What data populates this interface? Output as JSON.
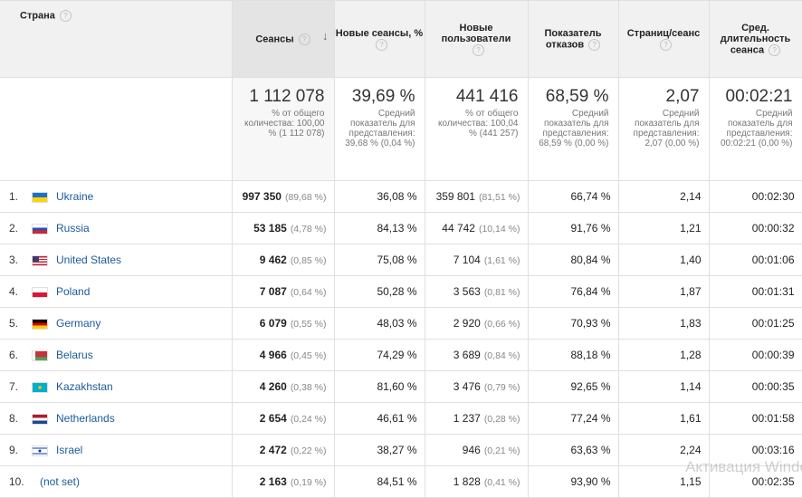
{
  "headers": {
    "country": "Страна",
    "sessions": "Сеансы",
    "new_sessions": "Новые сеансы, %",
    "new_users": "Новые пользователи",
    "bounce": "Показатель отказов",
    "pages": "Страниц/сеанс",
    "duration": "Сред. длительность сеанса"
  },
  "totals": {
    "sessions": {
      "value": "1 112 078",
      "sub": "% от общего количества: 100,00 % (1 112 078)"
    },
    "new_sessions": {
      "value": "39,69 %",
      "sub": "Средний показатель для представления: 39,68 % (0,04 %)"
    },
    "new_users": {
      "value": "441 416",
      "sub": "% от общего количества: 100,04 % (441 257)"
    },
    "bounce": {
      "value": "68,59 %",
      "sub": "Средний показатель для представления: 68,59 % (0,00 %)"
    },
    "pages": {
      "value": "2,07",
      "sub": "Средний показатель для представления: 2,07 (0,00 %)"
    },
    "duration": {
      "value": "00:02:21",
      "sub": "Средний показатель для представления: 00:02:21 (0,00 %)"
    }
  },
  "rows": [
    {
      "idx": "1.",
      "country": "Ukraine",
      "flag": "ua",
      "sessions": "997 350",
      "sessions_pct": "(89,68 %)",
      "new_sessions": "36,08 %",
      "new_users": "359 801",
      "new_users_pct": "(81,51 %)",
      "bounce": "66,74 %",
      "pages": "2,14",
      "duration": "00:02:30"
    },
    {
      "idx": "2.",
      "country": "Russia",
      "flag": "ru",
      "sessions": "53 185",
      "sessions_pct": "(4,78 %)",
      "new_sessions": "84,13 %",
      "new_users": "44 742",
      "new_users_pct": "(10,14 %)",
      "bounce": "91,76 %",
      "pages": "1,21",
      "duration": "00:00:32"
    },
    {
      "idx": "3.",
      "country": "United States",
      "flag": "us",
      "sessions": "9 462",
      "sessions_pct": "(0,85 %)",
      "new_sessions": "75,08 %",
      "new_users": "7 104",
      "new_users_pct": "(1,61 %)",
      "bounce": "80,84 %",
      "pages": "1,40",
      "duration": "00:01:06"
    },
    {
      "idx": "4.",
      "country": "Poland",
      "flag": "pl",
      "sessions": "7 087",
      "sessions_pct": "(0,64 %)",
      "new_sessions": "50,28 %",
      "new_users": "3 563",
      "new_users_pct": "(0,81 %)",
      "bounce": "76,84 %",
      "pages": "1,87",
      "duration": "00:01:31"
    },
    {
      "idx": "5.",
      "country": "Germany",
      "flag": "de",
      "sessions": "6 079",
      "sessions_pct": "(0,55 %)",
      "new_sessions": "48,03 %",
      "new_users": "2 920",
      "new_users_pct": "(0,66 %)",
      "bounce": "70,93 %",
      "pages": "1,83",
      "duration": "00:01:25"
    },
    {
      "idx": "6.",
      "country": "Belarus",
      "flag": "by",
      "sessions": "4 966",
      "sessions_pct": "(0,45 %)",
      "new_sessions": "74,29 %",
      "new_users": "3 689",
      "new_users_pct": "(0,84 %)",
      "bounce": "88,18 %",
      "pages": "1,28",
      "duration": "00:00:39"
    },
    {
      "idx": "7.",
      "country": "Kazakhstan",
      "flag": "kz",
      "sessions": "4 260",
      "sessions_pct": "(0,38 %)",
      "new_sessions": "81,60 %",
      "new_users": "3 476",
      "new_users_pct": "(0,79 %)",
      "bounce": "92,65 %",
      "pages": "1,14",
      "duration": "00:00:35"
    },
    {
      "idx": "8.",
      "country": "Netherlands",
      "flag": "nl",
      "sessions": "2 654",
      "sessions_pct": "(0,24 %)",
      "new_sessions": "46,61 %",
      "new_users": "1 237",
      "new_users_pct": "(0,28 %)",
      "bounce": "77,24 %",
      "pages": "1,61",
      "duration": "00:01:58"
    },
    {
      "idx": "9.",
      "country": "Israel",
      "flag": "il",
      "sessions": "2 472",
      "sessions_pct": "(0,22 %)",
      "new_sessions": "38,27 %",
      "new_users": "946",
      "new_users_pct": "(0,21 %)",
      "bounce": "63,63 %",
      "pages": "2,24",
      "duration": "00:03:16"
    },
    {
      "idx": "10.",
      "country": "(not set)",
      "flag": "",
      "sessions": "2 163",
      "sessions_pct": "(0,19 %)",
      "new_sessions": "84,51 %",
      "new_users": "1 828",
      "new_users_pct": "(0,41 %)",
      "bounce": "93,90 %",
      "pages": "1,15",
      "duration": "00:02:35"
    }
  ],
  "watermark": "Активация Windc"
}
